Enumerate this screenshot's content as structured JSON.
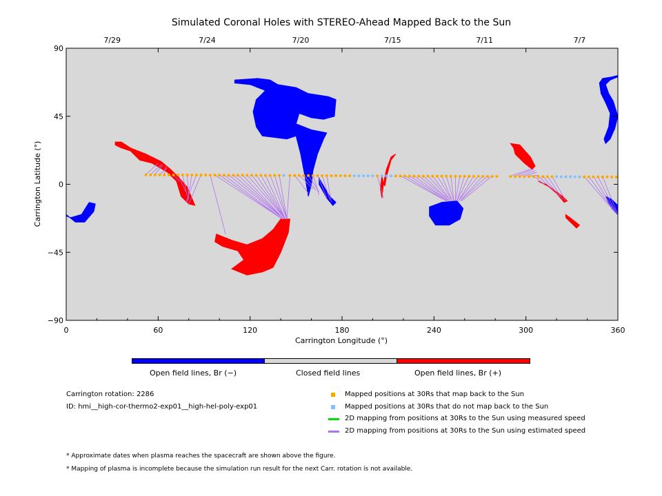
{
  "chart_data": {
    "type": "scatter",
    "title": "Simulated Coronal Holes with STEREO-Ahead Mapped Back to the Sun",
    "xlabel": "Carrington Longitude (°)",
    "ylabel": "Carrington Latitude (°)",
    "xlim": [
      0,
      360
    ],
    "ylim": [
      -90,
      90
    ],
    "x_ticks": [
      0,
      60,
      120,
      180,
      240,
      300,
      360
    ],
    "y_ticks": [
      -90,
      -45,
      0,
      45,
      90
    ],
    "top_axis_dates": [
      {
        "label": "7/29",
        "lon": 30
      },
      {
        "label": "7/24",
        "lon": 92
      },
      {
        "label": "7/20",
        "lon": 153
      },
      {
        "label": "7/15",
        "lon": 213
      },
      {
        "label": "7/11",
        "lon": 273
      },
      {
        "label": "7/7",
        "lon": 335
      }
    ],
    "colorbar": [
      {
        "label": "Open field lines, Br (−)",
        "color": "#0000ff"
      },
      {
        "label": "Closed field lines",
        "color": "#d8d8d8"
      },
      {
        "label": "Open field lines, Br (+)",
        "color": "#ff0000"
      }
    ],
    "coronal_holes": [
      {
        "polarity": "negative",
        "color": "#0000ff",
        "outline": [
          [
            110,
            69
          ],
          [
            125,
            70
          ],
          [
            133,
            69
          ],
          [
            138,
            66
          ],
          [
            150,
            64
          ],
          [
            158,
            60
          ],
          [
            171,
            58
          ],
          [
            176,
            56
          ],
          [
            175,
            45
          ],
          [
            168,
            43
          ],
          [
            160,
            44
          ],
          [
            152,
            47
          ],
          [
            150,
            40
          ],
          [
            160,
            36
          ],
          [
            170,
            34
          ],
          [
            168,
            30
          ],
          [
            164,
            20
          ],
          [
            161,
            9
          ],
          [
            160,
            0
          ],
          [
            158,
            -8
          ],
          [
            156,
            4
          ],
          [
            153,
            20
          ],
          [
            150,
            32
          ],
          [
            144,
            30
          ],
          [
            136,
            31
          ],
          [
            128,
            32
          ],
          [
            124,
            38
          ],
          [
            122,
            48
          ],
          [
            124,
            56
          ],
          [
            130,
            62
          ],
          [
            120,
            66
          ],
          [
            110,
            67
          ]
        ]
      },
      {
        "polarity": "negative",
        "color": "#0000ff",
        "outline": [
          [
            165,
            4
          ],
          [
            172,
            -8
          ],
          [
            176,
            -12
          ],
          [
            174,
            -14
          ],
          [
            170,
            -9
          ],
          [
            165,
            0
          ]
        ]
      },
      {
        "polarity": "negative",
        "color": "#0000ff",
        "outline": [
          [
            0,
            -20
          ],
          [
            6,
            -25
          ],
          [
            12,
            -25
          ],
          [
            18,
            -18
          ],
          [
            19,
            -13
          ],
          [
            15,
            -12
          ],
          [
            10,
            -20
          ],
          [
            3,
            -22
          ],
          [
            0,
            -21
          ]
        ]
      },
      {
        "polarity": "negative",
        "color": "#0000ff",
        "outline": [
          [
            237,
            -15
          ],
          [
            245,
            -12
          ],
          [
            255,
            -11
          ],
          [
            259,
            -16
          ],
          [
            257,
            -23
          ],
          [
            250,
            -27
          ],
          [
            241,
            -27
          ],
          [
            237,
            -21
          ]
        ]
      },
      {
        "polarity": "negative",
        "color": "#0000ff",
        "outline": [
          [
            350,
            70
          ],
          [
            356,
            71
          ],
          [
            360,
            72
          ],
          [
            360,
            71
          ],
          [
            355,
            69
          ],
          [
            352,
            66
          ],
          [
            354,
            60
          ],
          [
            357,
            55
          ],
          [
            360,
            45
          ],
          [
            358,
            37
          ],
          [
            355,
            30
          ],
          [
            352,
            27
          ],
          [
            351,
            30
          ],
          [
            354,
            38
          ],
          [
            355,
            47
          ],
          [
            352,
            54
          ],
          [
            349,
            60
          ],
          [
            348,
            67
          ]
        ]
      },
      {
        "polarity": "negative",
        "color": "#0000ff",
        "outline": [
          [
            352,
            -8
          ],
          [
            356,
            -16
          ],
          [
            360,
            -20
          ],
          [
            360,
            -14
          ],
          [
            356,
            -10
          ]
        ]
      },
      {
        "polarity": "positive",
        "color": "#ff0000",
        "outline": [
          [
            32,
            28
          ],
          [
            36,
            28
          ],
          [
            42,
            24
          ],
          [
            52,
            20
          ],
          [
            62,
            15
          ],
          [
            68,
            10
          ],
          [
            74,
            4
          ],
          [
            79,
            -2
          ],
          [
            84,
            -14
          ],
          [
            80,
            -13
          ],
          [
            75,
            -8
          ],
          [
            72,
            2
          ],
          [
            66,
            8
          ],
          [
            56,
            14
          ],
          [
            48,
            16
          ],
          [
            42,
            22
          ],
          [
            36,
            24
          ],
          [
            32,
            26
          ]
        ]
      },
      {
        "polarity": "positive",
        "color": "#ff0000",
        "outline": [
          [
            98,
            -33
          ],
          [
            108,
            -37
          ],
          [
            118,
            -40
          ],
          [
            128,
            -36
          ],
          [
            135,
            -30
          ],
          [
            140,
            -23
          ],
          [
            146,
            -23
          ],
          [
            145,
            -32
          ],
          [
            140,
            -45
          ],
          [
            135,
            -55
          ],
          [
            128,
            -58
          ],
          [
            118,
            -60
          ],
          [
            108,
            -56
          ],
          [
            116,
            -50
          ],
          [
            112,
            -44
          ],
          [
            102,
            -41
          ],
          [
            97,
            -38
          ]
        ]
      },
      {
        "polarity": "positive",
        "color": "#ff0000",
        "outline": [
          [
            207,
            0
          ],
          [
            209,
            10
          ],
          [
            212,
            18
          ],
          [
            215,
            20
          ],
          [
            212,
            16
          ],
          [
            209,
            5
          ],
          [
            208,
            -1
          ]
        ]
      },
      {
        "polarity": "positive",
        "color": "#ff0000",
        "outline": [
          [
            206,
            -9
          ],
          [
            207,
            0
          ],
          [
            206,
            6
          ],
          [
            205,
            -3
          ]
        ]
      },
      {
        "polarity": "positive",
        "color": "#ff0000",
        "outline": [
          [
            290,
            27
          ],
          [
            296,
            26
          ],
          [
            303,
            18
          ],
          [
            306,
            12
          ],
          [
            304,
            10
          ],
          [
            299,
            14
          ],
          [
            293,
            20
          ],
          [
            292,
            24
          ]
        ]
      },
      {
        "polarity": "positive",
        "color": "#ff0000",
        "outline": [
          [
            308,
            2
          ],
          [
            316,
            -2
          ],
          [
            324,
            -8
          ],
          [
            327,
            -11
          ],
          [
            325,
            -12
          ],
          [
            320,
            -6
          ],
          [
            313,
            0
          ]
        ]
      },
      {
        "polarity": "positive",
        "color": "#ff0000",
        "outline": [
          [
            326,
            -20
          ],
          [
            330,
            -23
          ],
          [
            335,
            -27
          ],
          [
            333,
            -29
          ],
          [
            329,
            -25
          ],
          [
            326,
            -22
          ]
        ]
      }
    ],
    "mapped_points_30Rs": {
      "legend": "Mapped positions at 30Rs that map back to the Sun",
      "color": "#ffa500",
      "lons": [
        52,
        55,
        58,
        61,
        64,
        67,
        70,
        73,
        76,
        79,
        82,
        85,
        88,
        91,
        94,
        97,
        100,
        103,
        106,
        109,
        112,
        115,
        118,
        121,
        124,
        127,
        130,
        133,
        136,
        139,
        146,
        149,
        152,
        155,
        158,
        161,
        164,
        167,
        170,
        173,
        176,
        179,
        182,
        185,
        203,
        215,
        218,
        221,
        224,
        227,
        230,
        233,
        236,
        239,
        242,
        245,
        248,
        251,
        254,
        257,
        260,
        263,
        266,
        269,
        272,
        275,
        278,
        281,
        290,
        293,
        296,
        299,
        302,
        305,
        308,
        311,
        314,
        317,
        338,
        341,
        344,
        347,
        350,
        353,
        356,
        359
      ],
      "lat_start": 6.5,
      "lat_end": 4.8
    },
    "unmapped_points_30Rs": {
      "legend": "Mapped positions at 30Rs that do not map back to the Sun",
      "color": "#7fbfff",
      "lons": [
        142,
        188,
        191,
        194,
        197,
        200,
        206,
        209,
        212,
        320,
        323,
        326,
        329,
        332,
        335
      ]
    },
    "mapping_lines": [
      {
        "label": "2D mapping from positions at 30Rs to the Sun using measured speed",
        "color": "#00dd00",
        "segments": []
      },
      {
        "label": "2D mapping from positions at 30Rs to the Sun using estimated speed",
        "color": "#b070f0",
        "segments": [
          [
            52,
            6.5,
            60,
            14
          ],
          [
            55,
            6.5,
            62,
            13
          ],
          [
            58,
            6.5,
            63,
            13
          ],
          [
            61,
            6.5,
            66,
            11
          ],
          [
            64,
            6.5,
            65,
            12
          ],
          [
            70,
            6.3,
            74,
            2
          ],
          [
            73,
            6.3,
            78,
            -5
          ],
          [
            76,
            6.3,
            79,
            -8
          ],
          [
            79,
            6.3,
            80,
            -10
          ],
          [
            82,
            6.3,
            79,
            -12
          ],
          [
            85,
            6.3,
            78,
            -12
          ],
          [
            88,
            6.3,
            80,
            -13
          ],
          [
            94,
            6.2,
            104,
            -33
          ],
          [
            97,
            6.2,
            141,
            -23
          ],
          [
            100,
            6.2,
            141,
            -23
          ],
          [
            103,
            6.2,
            141,
            -23
          ],
          [
            106,
            6.2,
            142,
            -23
          ],
          [
            109,
            6.2,
            142,
            -23
          ],
          [
            112,
            6.2,
            142,
            -23
          ],
          [
            115,
            6.2,
            142,
            -23
          ],
          [
            118,
            6.2,
            143,
            -23
          ],
          [
            121,
            6.2,
            143,
            -23
          ],
          [
            124,
            6.2,
            143,
            -23
          ],
          [
            127,
            6.2,
            143,
            -23
          ],
          [
            130,
            6.2,
            143,
            -23
          ],
          [
            133,
            6.2,
            144,
            -23
          ],
          [
            136,
            6.2,
            144,
            -23
          ],
          [
            139,
            6.2,
            144,
            -23
          ],
          [
            146,
            6.1,
            144,
            -23
          ],
          [
            149,
            6.1,
            158,
            -6
          ],
          [
            152,
            6.1,
            161,
            -3
          ],
          [
            155,
            6.1,
            163,
            -4
          ],
          [
            158,
            6.1,
            165,
            -5
          ],
          [
            161,
            6.1,
            165,
            -7
          ],
          [
            164,
            6.1,
            170,
            -9
          ],
          [
            167,
            6.1,
            172,
            -10
          ],
          [
            170,
            6.1,
            173,
            -12
          ],
          [
            203,
            5.7,
            207,
            -9
          ],
          [
            218,
            5.7,
            248,
            -11
          ],
          [
            221,
            5.7,
            248,
            -11
          ],
          [
            224,
            5.7,
            249,
            -11
          ],
          [
            227,
            5.7,
            249,
            -11
          ],
          [
            230,
            5.7,
            250,
            -11
          ],
          [
            233,
            5.7,
            250,
            -11
          ],
          [
            236,
            5.7,
            251,
            -11
          ],
          [
            239,
            5.7,
            251,
            -11
          ],
          [
            242,
            5.7,
            252,
            -11
          ],
          [
            245,
            5.6,
            252,
            -11
          ],
          [
            248,
            5.6,
            253,
            -11
          ],
          [
            251,
            5.6,
            253,
            -11
          ],
          [
            254,
            5.6,
            254,
            -11
          ],
          [
            257,
            5.6,
            254,
            -11
          ],
          [
            260,
            5.6,
            255,
            -11
          ],
          [
            263,
            5.6,
            255,
            -11
          ],
          [
            266,
            5.6,
            256,
            -11
          ],
          [
            269,
            5.6,
            256,
            -11
          ],
          [
            272,
            5.6,
            257,
            -11
          ],
          [
            275,
            5.6,
            257,
            -11
          ],
          [
            278,
            5.6,
            258,
            -11
          ],
          [
            290,
            5.5,
            303,
            10
          ],
          [
            293,
            5.5,
            305,
            10
          ],
          [
            296,
            5.5,
            306,
            9
          ],
          [
            299,
            5.5,
            307,
            8
          ],
          [
            302,
            5.5,
            308,
            6
          ],
          [
            305,
            5.5,
            312,
            0
          ],
          [
            308,
            5.5,
            318,
            -4
          ],
          [
            311,
            5.5,
            322,
            -8
          ],
          [
            314,
            5.5,
            324,
            -10
          ],
          [
            317,
            5.5,
            326,
            -11
          ],
          [
            338,
            5.2,
            356,
            -16
          ],
          [
            341,
            5.2,
            357,
            -17
          ],
          [
            344,
            5.2,
            358,
            -18
          ],
          [
            347,
            5.1,
            359,
            -19
          ],
          [
            350,
            5.1,
            360,
            -20
          ]
        ]
      }
    ]
  },
  "info": {
    "carrington_rotation": "Carrington rotation: 2286",
    "run_id": "ID: hmi__high-cor-thermo2-exp01__high-hel-poly-exp01"
  },
  "notes": {
    "note1": "* Approximate dates when plasma reaches the spacecraft are shown above the figure.",
    "note2": "* Mapping of plasma is incomplete because the simulation run result for the next Carr. rotation is not available."
  }
}
